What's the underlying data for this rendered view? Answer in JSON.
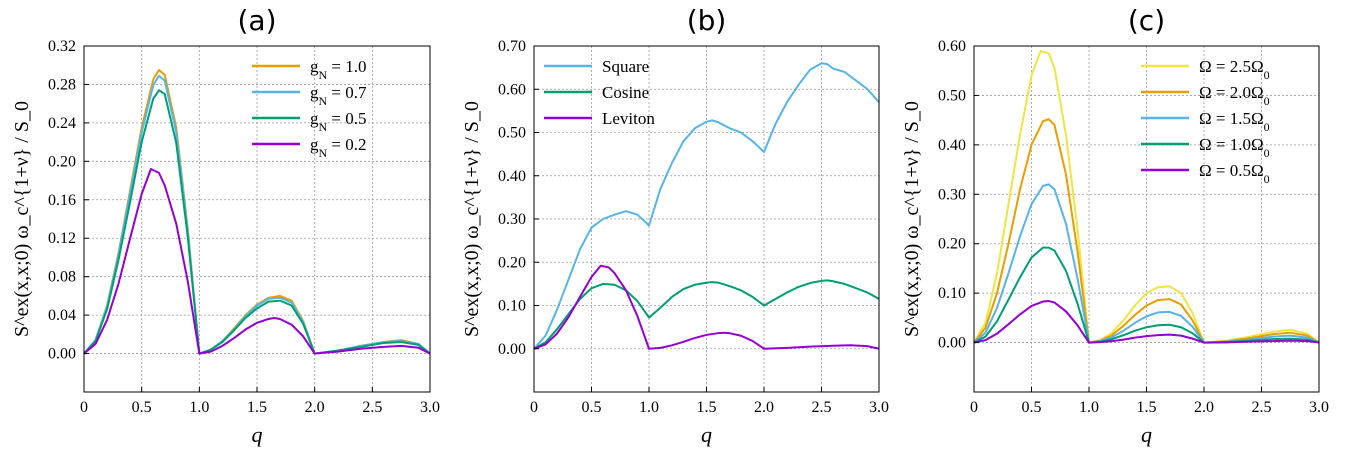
{
  "colors": {
    "orange": "#E69F00",
    "blue": "#56B4E9",
    "green": "#009E73",
    "purple": "#9400D3",
    "yellow": "#F0E442"
  },
  "chart_data": [
    {
      "type": "line",
      "title": "(a)",
      "xlabel": "q",
      "ylabel": "S^ex(x,x;0) ω_c^{1+ν} / S_0",
      "xlim": [
        0,
        3.0
      ],
      "ylim": [
        -0.04,
        0.32
      ],
      "xticks": [
        0,
        0.5,
        1.0,
        1.5,
        2.0,
        2.5,
        3.0
      ],
      "xtick_labels": [
        "0",
        "0.5",
        "1.0",
        "1.5",
        "2.0",
        "2.5",
        "3.0"
      ],
      "yticks": [
        0.0,
        0.04,
        0.08,
        0.12,
        0.16,
        0.2,
        0.24,
        0.28,
        0.32
      ],
      "ytick_labels": [
        "0.00",
        "0.04",
        "0.08",
        "0.12",
        "0.16",
        "0.20",
        "0.24",
        "0.28",
        "0.32"
      ],
      "grid": true,
      "legend_position": "top-right",
      "series": [
        {
          "name": "g_N = 1.0",
          "color": "#E69F00",
          "x": [
            0,
            0.1,
            0.2,
            0.3,
            0.4,
            0.5,
            0.6,
            0.65,
            0.7,
            0.8,
            0.9,
            1.0,
            1.1,
            1.2,
            1.3,
            1.4,
            1.5,
            1.6,
            1.7,
            1.8,
            1.9,
            2.0,
            2.2,
            2.4,
            2.6,
            2.75,
            2.9,
            3.0
          ],
          "y": [
            0,
            0.014,
            0.05,
            0.105,
            0.17,
            0.235,
            0.285,
            0.295,
            0.29,
            0.235,
            0.13,
            0,
            0.004,
            0.013,
            0.026,
            0.04,
            0.051,
            0.058,
            0.06,
            0.055,
            0.034,
            0,
            0.003,
            0.008,
            0.012,
            0.014,
            0.01,
            0
          ]
        },
        {
          "name": "g_N = 0.7",
          "color": "#56B4E9",
          "x": [
            0,
            0.1,
            0.2,
            0.3,
            0.4,
            0.5,
            0.6,
            0.65,
            0.7,
            0.8,
            0.9,
            1.0,
            1.1,
            1.2,
            1.3,
            1.4,
            1.5,
            1.6,
            1.7,
            1.8,
            1.9,
            2.0,
            2.2,
            2.4,
            2.6,
            2.75,
            2.9,
            3.0
          ],
          "y": [
            0,
            0.014,
            0.049,
            0.103,
            0.167,
            0.23,
            0.279,
            0.289,
            0.284,
            0.23,
            0.127,
            0,
            0.004,
            0.013,
            0.025,
            0.039,
            0.05,
            0.057,
            0.058,
            0.053,
            0.033,
            0,
            0.003,
            0.008,
            0.012,
            0.013,
            0.01,
            0
          ]
        },
        {
          "name": "g_N = 0.5",
          "color": "#009E73",
          "x": [
            0,
            0.1,
            0.2,
            0.3,
            0.4,
            0.5,
            0.6,
            0.65,
            0.7,
            0.8,
            0.9,
            1.0,
            1.1,
            1.2,
            1.3,
            1.4,
            1.5,
            1.6,
            1.7,
            1.8,
            1.9,
            2.0,
            2.2,
            2.4,
            2.6,
            2.75,
            2.9,
            3.0
          ],
          "y": [
            0,
            0.013,
            0.046,
            0.098,
            0.158,
            0.22,
            0.265,
            0.274,
            0.27,
            0.219,
            0.121,
            0,
            0.004,
            0.012,
            0.024,
            0.037,
            0.047,
            0.054,
            0.055,
            0.05,
            0.031,
            0,
            0.003,
            0.007,
            0.011,
            0.012,
            0.009,
            0
          ]
        },
        {
          "name": "g_N = 0.2",
          "color": "#9400D3",
          "x": [
            0,
            0.1,
            0.2,
            0.3,
            0.4,
            0.5,
            0.58,
            0.65,
            0.7,
            0.8,
            0.9,
            1.0,
            1.1,
            1.2,
            1.3,
            1.4,
            1.5,
            1.6,
            1.65,
            1.7,
            1.8,
            1.9,
            2.0,
            2.2,
            2.4,
            2.6,
            2.75,
            2.9,
            3.0
          ],
          "y": [
            0,
            0.01,
            0.035,
            0.073,
            0.12,
            0.166,
            0.192,
            0.188,
            0.175,
            0.135,
            0.075,
            0,
            0.002,
            0.008,
            0.016,
            0.025,
            0.032,
            0.036,
            0.037,
            0.036,
            0.03,
            0.018,
            0,
            0.002,
            0.005,
            0.007,
            0.008,
            0.006,
            0
          ]
        }
      ]
    },
    {
      "type": "line",
      "title": "(b)",
      "xlabel": "q",
      "ylabel": "S^ex(x,x;0) ω_c^{1+ν} / S_0",
      "xlim": [
        0,
        3.0
      ],
      "ylim": [
        -0.1,
        0.7
      ],
      "xticks": [
        0,
        0.5,
        1.0,
        1.5,
        2.0,
        2.5,
        3.0
      ],
      "xtick_labels": [
        "0",
        "0.5",
        "1.0",
        "1.5",
        "2.0",
        "2.5",
        "3.0"
      ],
      "yticks": [
        0.0,
        0.1,
        0.2,
        0.3,
        0.4,
        0.5,
        0.6,
        0.7
      ],
      "ytick_labels": [
        "0.00",
        "0.10",
        "0.20",
        "0.30",
        "0.40",
        "0.50",
        "0.60",
        "0.70"
      ],
      "grid": true,
      "legend_position": "top-left",
      "series": [
        {
          "name": "Square",
          "color": "#56B4E9",
          "x": [
            0,
            0.1,
            0.2,
            0.3,
            0.4,
            0.5,
            0.6,
            0.7,
            0.8,
            0.9,
            1.0,
            1.1,
            1.2,
            1.3,
            1.4,
            1.5,
            1.55,
            1.6,
            1.7,
            1.8,
            1.9,
            2.0,
            2.1,
            2.2,
            2.3,
            2.4,
            2.5,
            2.55,
            2.6,
            2.7,
            2.8,
            2.9,
            3.0
          ],
          "y": [
            0,
            0.03,
            0.09,
            0.16,
            0.23,
            0.28,
            0.3,
            0.31,
            0.318,
            0.31,
            0.285,
            0.37,
            0.43,
            0.48,
            0.51,
            0.525,
            0.528,
            0.524,
            0.51,
            0.5,
            0.48,
            0.455,
            0.52,
            0.57,
            0.61,
            0.645,
            0.66,
            0.658,
            0.648,
            0.64,
            0.62,
            0.6,
            0.57
          ]
        },
        {
          "name": "Cosine",
          "color": "#009E73",
          "x": [
            0,
            0.1,
            0.2,
            0.3,
            0.4,
            0.5,
            0.6,
            0.7,
            0.8,
            0.9,
            1.0,
            1.1,
            1.2,
            1.3,
            1.4,
            1.5,
            1.55,
            1.6,
            1.7,
            1.8,
            1.9,
            2.0,
            2.1,
            2.2,
            2.3,
            2.4,
            2.5,
            2.55,
            2.6,
            2.7,
            2.8,
            2.9,
            3.0
          ],
          "y": [
            0,
            0.015,
            0.045,
            0.08,
            0.115,
            0.14,
            0.15,
            0.148,
            0.135,
            0.11,
            0.072,
            0.095,
            0.12,
            0.138,
            0.148,
            0.153,
            0.154,
            0.153,
            0.145,
            0.135,
            0.12,
            0.1,
            0.115,
            0.13,
            0.143,
            0.152,
            0.157,
            0.158,
            0.156,
            0.15,
            0.14,
            0.13,
            0.115
          ]
        },
        {
          "name": "Leviton",
          "color": "#9400D3",
          "x": [
            0,
            0.1,
            0.2,
            0.3,
            0.4,
            0.5,
            0.58,
            0.65,
            0.7,
            0.8,
            0.9,
            1.0,
            1.1,
            1.2,
            1.3,
            1.4,
            1.5,
            1.6,
            1.65,
            1.7,
            1.8,
            1.9,
            2.0,
            2.2,
            2.4,
            2.6,
            2.75,
            2.9,
            3.0
          ],
          "y": [
            0,
            0.01,
            0.035,
            0.073,
            0.12,
            0.166,
            0.192,
            0.188,
            0.175,
            0.135,
            0.075,
            0,
            0.002,
            0.008,
            0.016,
            0.025,
            0.032,
            0.036,
            0.037,
            0.036,
            0.03,
            0.018,
            0,
            0.002,
            0.005,
            0.007,
            0.008,
            0.006,
            0
          ]
        }
      ]
    },
    {
      "type": "line",
      "title": "(c)",
      "xlabel": "q",
      "ylabel": "S^ex(x,x;0) ω_c^{1+ν} / S_0",
      "xlim": [
        0,
        3.0
      ],
      "ylim": [
        -0.1,
        0.6
      ],
      "xticks": [
        0,
        0.5,
        1.0,
        1.5,
        2.0,
        2.5,
        3.0
      ],
      "xtick_labels": [
        "0",
        "0.5",
        "1.0",
        "1.5",
        "2.0",
        "2.5",
        "3.0"
      ],
      "yticks": [
        0.0,
        0.1,
        0.2,
        0.3,
        0.4,
        0.5,
        0.6
      ],
      "ytick_labels": [
        "0.00",
        "0.10",
        "0.20",
        "0.30",
        "0.40",
        "0.50",
        "0.60"
      ],
      "grid": true,
      "legend_position": "top-right",
      "series": [
        {
          "name": "Ω = 2.5Ω_0",
          "color": "#F0E442",
          "x": [
            0,
            0.1,
            0.2,
            0.3,
            0.4,
            0.5,
            0.58,
            0.65,
            0.7,
            0.8,
            0.9,
            1.0,
            1.1,
            1.2,
            1.3,
            1.4,
            1.5,
            1.6,
            1.7,
            1.8,
            1.9,
            2.0,
            2.2,
            2.4,
            2.6,
            2.75,
            2.9,
            3.0
          ],
          "y": [
            0,
            0.04,
            0.14,
            0.28,
            0.42,
            0.54,
            0.59,
            0.585,
            0.555,
            0.42,
            0.23,
            0,
            0.005,
            0.02,
            0.045,
            0.075,
            0.1,
            0.112,
            0.114,
            0.1,
            0.06,
            0,
            0.004,
            0.012,
            0.022,
            0.026,
            0.018,
            0
          ]
        },
        {
          "name": "Ω = 2.0Ω_0",
          "color": "#E69F00",
          "x": [
            0,
            0.1,
            0.2,
            0.3,
            0.4,
            0.5,
            0.6,
            0.65,
            0.7,
            0.8,
            0.9,
            1.0,
            1.1,
            1.2,
            1.3,
            1.4,
            1.5,
            1.6,
            1.7,
            1.8,
            1.9,
            2.0,
            2.2,
            2.4,
            2.6,
            2.75,
            2.9,
            3.0
          ],
          "y": [
            0,
            0.03,
            0.1,
            0.2,
            0.31,
            0.4,
            0.448,
            0.452,
            0.44,
            0.34,
            0.185,
            0,
            0.004,
            0.015,
            0.034,
            0.056,
            0.075,
            0.086,
            0.088,
            0.077,
            0.045,
            0,
            0.003,
            0.009,
            0.017,
            0.02,
            0.014,
            0
          ]
        },
        {
          "name": "Ω = 1.5Ω_0",
          "color": "#56B4E9",
          "x": [
            0,
            0.1,
            0.2,
            0.3,
            0.4,
            0.5,
            0.6,
            0.65,
            0.7,
            0.8,
            0.9,
            1.0,
            1.1,
            1.2,
            1.3,
            1.4,
            1.5,
            1.6,
            1.7,
            1.8,
            1.9,
            2.0,
            2.2,
            2.4,
            2.6,
            2.75,
            2.9,
            3.0
          ],
          "y": [
            0,
            0.02,
            0.07,
            0.14,
            0.215,
            0.28,
            0.317,
            0.32,
            0.31,
            0.24,
            0.13,
            0,
            0.003,
            0.011,
            0.024,
            0.04,
            0.053,
            0.061,
            0.062,
            0.054,
            0.032,
            0,
            0.002,
            0.006,
            0.012,
            0.014,
            0.01,
            0
          ]
        },
        {
          "name": "Ω = 1.0Ω_0",
          "color": "#009E73",
          "x": [
            0,
            0.1,
            0.2,
            0.3,
            0.4,
            0.5,
            0.6,
            0.65,
            0.7,
            0.8,
            0.9,
            1.0,
            1.1,
            1.2,
            1.3,
            1.4,
            1.5,
            1.6,
            1.7,
            1.8,
            1.9,
            2.0,
            2.2,
            2.4,
            2.6,
            2.75,
            2.9,
            3.0
          ],
          "y": [
            0,
            0.012,
            0.043,
            0.087,
            0.132,
            0.172,
            0.192,
            0.192,
            0.186,
            0.145,
            0.079,
            0,
            0.002,
            0.007,
            0.015,
            0.024,
            0.031,
            0.035,
            0.036,
            0.031,
            0.019,
            0,
            0.001,
            0.004,
            0.007,
            0.008,
            0.006,
            0
          ]
        },
        {
          "name": "Ω = 0.5Ω_0",
          "color": "#9400D3",
          "x": [
            0,
            0.1,
            0.2,
            0.3,
            0.4,
            0.5,
            0.6,
            0.65,
            0.7,
            0.8,
            0.9,
            1.0,
            1.1,
            1.2,
            1.3,
            1.4,
            1.5,
            1.6,
            1.7,
            1.8,
            1.9,
            2.0,
            2.2,
            2.4,
            2.6,
            2.75,
            2.9,
            3.0
          ],
          "y": [
            0,
            0.005,
            0.018,
            0.037,
            0.057,
            0.074,
            0.083,
            0.084,
            0.081,
            0.063,
            0.035,
            0,
            0.001,
            0.003,
            0.006,
            0.01,
            0.013,
            0.015,
            0.016,
            0.014,
            0.008,
            0,
            0.0005,
            0.002,
            0.003,
            0.004,
            0.003,
            0
          ]
        }
      ]
    }
  ]
}
